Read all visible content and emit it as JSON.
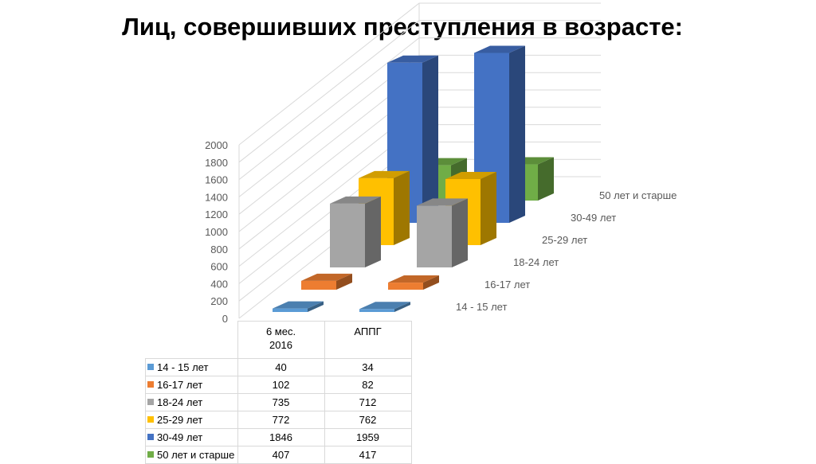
{
  "title": "Лиц, совершивших преступления в возрасте:",
  "chart_data": {
    "type": "bar",
    "subtype": "3d-column",
    "title": "Лиц, совершивших преступления в возрасте:",
    "categories": [
      "6 мес. 2016",
      "АППГ"
    ],
    "category_lines": [
      [
        "6 мес.",
        "2016"
      ],
      [
        "АППГ"
      ]
    ],
    "series": [
      {
        "name": "14 - 15 лет",
        "values": [
          40,
          34
        ],
        "color": "#5b9bd5"
      },
      {
        "name": "16-17 лет",
        "values": [
          102,
          82
        ],
        "color": "#ed7d31"
      },
      {
        "name": "18-24 лет",
        "values": [
          735,
          712
        ],
        "color": "#a5a5a5"
      },
      {
        "name": "25-29 лет",
        "values": [
          772,
          762
        ],
        "color": "#ffc000"
      },
      {
        "name": "30-49 лет",
        "values": [
          1846,
          1959
        ],
        "color": "#4472c4"
      },
      {
        "name": "50 лет и старше",
        "values": [
          407,
          417
        ],
        "color": "#70ad47"
      }
    ],
    "y_ticks": [
      "0",
      "200",
      "400",
      "600",
      "800",
      "1000",
      "1200",
      "1400",
      "1600",
      "1800",
      "2000"
    ],
    "ylim": [
      0,
      2000
    ],
    "grid": true,
    "legend": "data table"
  }
}
